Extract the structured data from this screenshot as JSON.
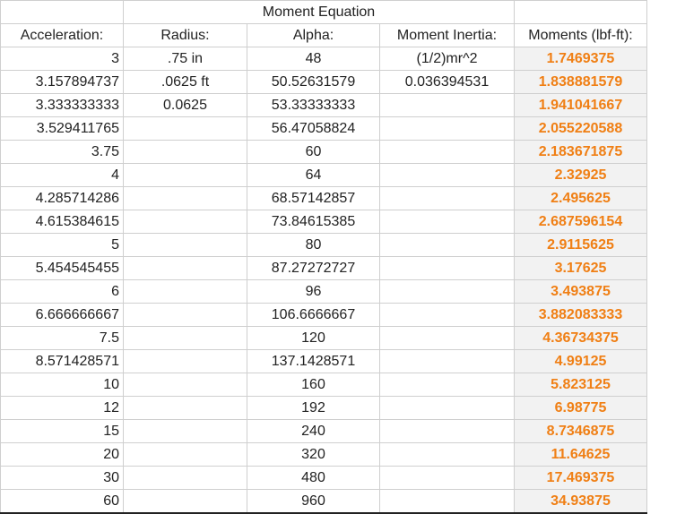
{
  "title": "Moment Equation",
  "headers": {
    "acceleration": "Acceleration:",
    "radius": "Radius:",
    "alpha": "Alpha:",
    "moment_inertia": "Moment Inertia:",
    "moments": "Moments (lbf-ft):"
  },
  "rows": [
    {
      "acceleration": "3",
      "radius": ".75 in",
      "alpha": "48",
      "moment_inertia": "(1/2)mr^2",
      "moments": "1.7469375"
    },
    {
      "acceleration": "3.157894737",
      "radius": ".0625 ft",
      "alpha": "50.52631579",
      "moment_inertia": "0.036394531",
      "moments": "1.838881579"
    },
    {
      "acceleration": "3.333333333",
      "radius": "0.0625",
      "alpha": "53.33333333",
      "moment_inertia": "",
      "moments": "1.941041667"
    },
    {
      "acceleration": "3.529411765",
      "radius": "",
      "alpha": "56.47058824",
      "moment_inertia": "",
      "moments": "2.055220588"
    },
    {
      "acceleration": "3.75",
      "radius": "",
      "alpha": "60",
      "moment_inertia": "",
      "moments": "2.183671875"
    },
    {
      "acceleration": "4",
      "radius": "",
      "alpha": "64",
      "moment_inertia": "",
      "moments": "2.32925"
    },
    {
      "acceleration": "4.285714286",
      "radius": "",
      "alpha": "68.57142857",
      "moment_inertia": "",
      "moments": "2.495625"
    },
    {
      "acceleration": "4.615384615",
      "radius": "",
      "alpha": "73.84615385",
      "moment_inertia": "",
      "moments": "2.687596154"
    },
    {
      "acceleration": "5",
      "radius": "",
      "alpha": "80",
      "moment_inertia": "",
      "moments": "2.9115625"
    },
    {
      "acceleration": "5.454545455",
      "radius": "",
      "alpha": "87.27272727",
      "moment_inertia": "",
      "moments": "3.17625"
    },
    {
      "acceleration": "6",
      "radius": "",
      "alpha": "96",
      "moment_inertia": "",
      "moments": "3.493875"
    },
    {
      "acceleration": "6.666666667",
      "radius": "",
      "alpha": "106.6666667",
      "moment_inertia": "",
      "moments": "3.882083333"
    },
    {
      "acceleration": "7.5",
      "radius": "",
      "alpha": "120",
      "moment_inertia": "",
      "moments": "4.36734375"
    },
    {
      "acceleration": "8.571428571",
      "radius": "",
      "alpha": "137.1428571",
      "moment_inertia": "",
      "moments": "4.99125"
    },
    {
      "acceleration": "10",
      "radius": "",
      "alpha": "160",
      "moment_inertia": "",
      "moments": "5.823125"
    },
    {
      "acceleration": "12",
      "radius": "",
      "alpha": "192",
      "moment_inertia": "",
      "moments": "6.98775"
    },
    {
      "acceleration": "15",
      "radius": "",
      "alpha": "240",
      "moment_inertia": "",
      "moments": "8.7346875"
    },
    {
      "acceleration": "20",
      "radius": "",
      "alpha": "320",
      "moment_inertia": "",
      "moments": "11.64625"
    },
    {
      "acceleration": "30",
      "radius": "",
      "alpha": "480",
      "moment_inertia": "",
      "moments": "17.469375"
    },
    {
      "acceleration": "60",
      "radius": "",
      "alpha": "960",
      "moment_inertia": "",
      "moments": "34.93875"
    }
  ],
  "colors": {
    "moments_text": "#f07f14",
    "moments_fill": "#f2f2f2",
    "grid": "#cfcfcf"
  }
}
